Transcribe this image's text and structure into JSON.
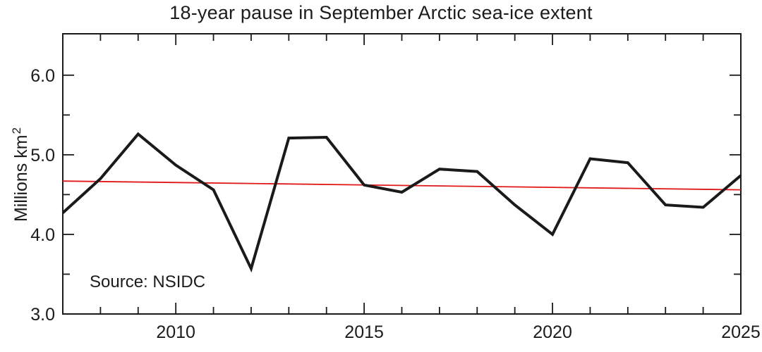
{
  "page": {
    "title": "18-year pause in September Arctic sea-ice extent"
  },
  "y_axis_title": {
    "base": "Millions km",
    "superscript": "2"
  },
  "source_note": "Source: NSIDC",
  "chart_data": {
    "type": "line",
    "title": "18-year pause in September Arctic sea-ice extent",
    "xlabel": "",
    "ylabel": "Millions km²",
    "x": [
      2007,
      2008,
      2009,
      2010,
      2011,
      2012,
      2013,
      2014,
      2015,
      2016,
      2017,
      2018,
      2019,
      2020,
      2021,
      2022,
      2023,
      2024,
      2025
    ],
    "series": [
      {
        "name": "September Arctic sea-ice extent",
        "color": "#1a1a1a",
        "line_width": 4,
        "values": [
          4.27,
          4.7,
          5.26,
          4.87,
          4.56,
          3.57,
          5.21,
          5.22,
          4.62,
          4.53,
          4.82,
          4.79,
          4.37,
          4.0,
          4.95,
          4.9,
          4.37,
          4.34,
          4.74
        ]
      }
    ],
    "trend_line": {
      "name": "linear trend",
      "color": "#e01818",
      "line_width": 1.8,
      "x": [
        2007,
        2025
      ],
      "values": [
        4.67,
        4.56
      ]
    },
    "xlim": [
      2007,
      2025
    ],
    "ylim": [
      3.0,
      6.52
    ],
    "x_ticks_major": [
      2010,
      2015,
      2020,
      2025
    ],
    "x_tick_labels": [
      "2010",
      "2015",
      "2020",
      "2025"
    ],
    "x_ticks_minor": [
      2008,
      2009,
      2011,
      2012,
      2013,
      2014,
      2016,
      2017,
      2018,
      2019,
      2021,
      2022,
      2023,
      2024
    ],
    "y_ticks_major": [
      3.0,
      4.0,
      5.0,
      6.0
    ],
    "y_tick_labels": [
      "3.0",
      "4.0",
      "5.0",
      "6.0"
    ],
    "y_ticks_minor": [
      3.5,
      4.5,
      5.5
    ],
    "grid": false,
    "legend": "none",
    "annotations": [
      "Source: NSIDC"
    ]
  }
}
